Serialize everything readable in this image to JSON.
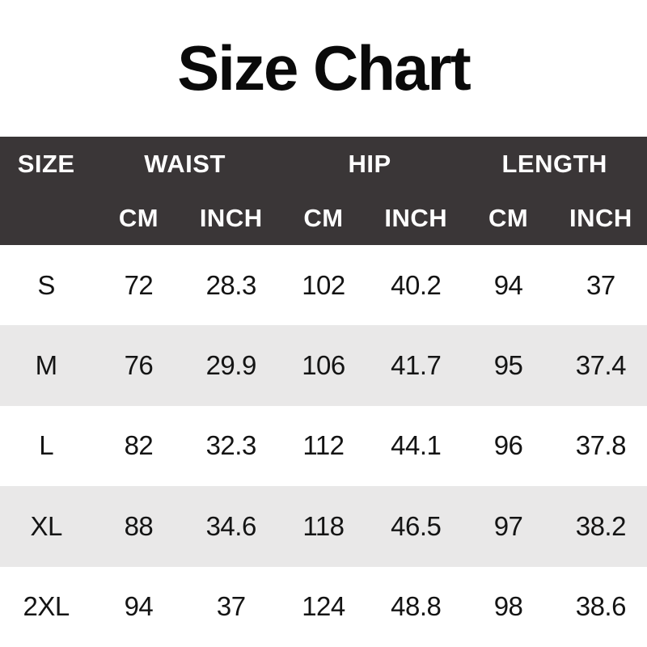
{
  "page": {
    "title": "Size Chart"
  },
  "colors": {
    "header_bg": "#3a3637",
    "header_text": "#ffffff",
    "row_bg": "#ffffff",
    "row_alt_bg": "#e9e8e8",
    "text": "#141414",
    "title": "#0a0a0a",
    "page_bg": "#ffffff"
  },
  "chart_data": {
    "type": "table",
    "title": "Size Chart",
    "column_groups": [
      {
        "label": "SIZE",
        "span": 1
      },
      {
        "label": "WAIST",
        "span": 2
      },
      {
        "label": "HIP",
        "span": 2
      },
      {
        "label": "LENGTH",
        "span": 2
      }
    ],
    "sub_headers": [
      "",
      "CM",
      "INCH",
      "CM",
      "INCH",
      "CM",
      "INCH"
    ],
    "rows": [
      {
        "size": "S",
        "values": [
          "72",
          "28.3",
          "102",
          "40.2",
          "94",
          "37"
        ]
      },
      {
        "size": "M",
        "values": [
          "76",
          "29.9",
          "106",
          "41.7",
          "95",
          "37.4"
        ]
      },
      {
        "size": "L",
        "values": [
          "82",
          "32.3",
          "112",
          "44.1",
          "96",
          "37.8"
        ]
      },
      {
        "size": "XL",
        "values": [
          "88",
          "34.6",
          "118",
          "46.5",
          "97",
          "38.2"
        ]
      },
      {
        "size": "2XL",
        "values": [
          "94",
          "37",
          "124",
          "48.8",
          "98",
          "38.6"
        ]
      }
    ],
    "layout": {
      "columns": 7,
      "row_striping": "white/gray alternating starting white",
      "header_rows": 2
    }
  }
}
